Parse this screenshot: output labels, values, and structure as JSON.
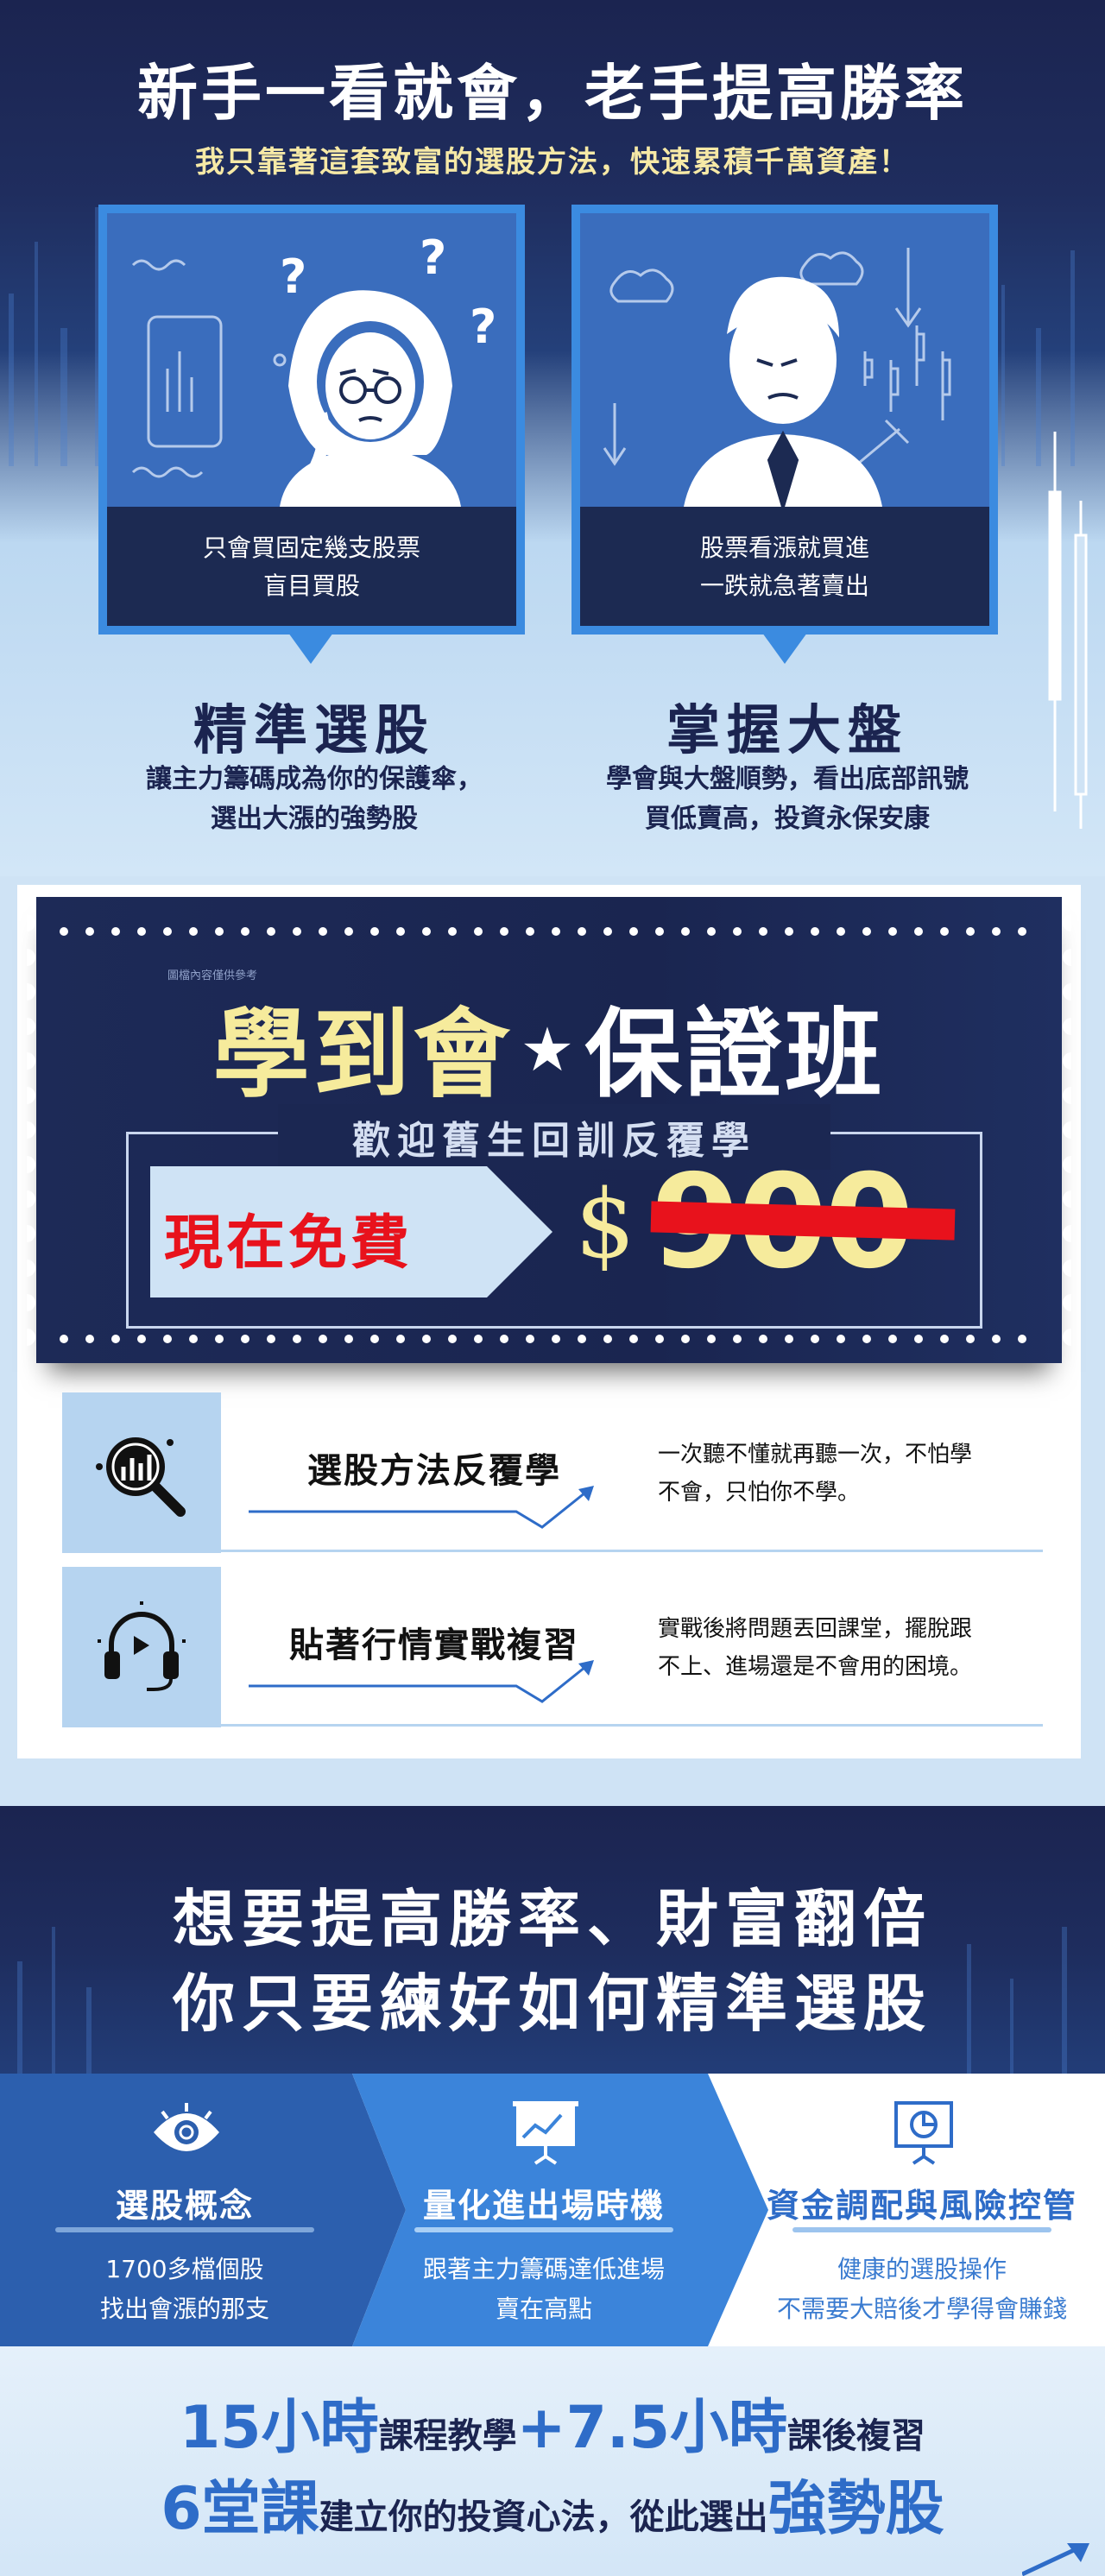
{
  "hero": {
    "title": "新手一看就會，老手提高勝率",
    "subtitle": "我只靠著這套致富的選股方法，快速累積千萬資產！",
    "cards": [
      {
        "caption_line1": "只會買固定幾支股票",
        "caption_line2": "盲目買股",
        "icon": "confused-woman-icon"
      },
      {
        "caption_line1": "股票看漲就買進",
        "caption_line2": "一跌就急著賣出",
        "icon": "stressed-man-icon"
      }
    ],
    "features": [
      {
        "title": "精準選股",
        "desc_line1": "讓主力籌碼成為你的保護傘，",
        "desc_line2": "選出大漲的強勢股"
      },
      {
        "title": "掌握大盤",
        "desc_line1": "學會與大盤順勢，看出底部訊號",
        "desc_line2": "買低賣高，投資永保安康"
      }
    ]
  },
  "ticket": {
    "small_text": "圖檔內容僅供參考",
    "title_part1": "學到會",
    "star": "★",
    "title_part2": "保證班",
    "subtitle": "歡迎舊生回訓反覆學",
    "free_label": "現在免費",
    "price_symbol": "$",
    "price_value": "900"
  },
  "benefits": [
    {
      "title": "選股方法反覆學",
      "desc_line1": "一次聽不懂就再聽一次，不怕學",
      "desc_line2": "不會，只怕你不學。",
      "icon": "chart-magnifier-icon"
    },
    {
      "title": "貼著行情實戰複習",
      "desc_line1": "實戰後將問題丟回課堂，擺脫跟",
      "desc_line2": "不上、進場還是不會用的困境。",
      "icon": "headset-play-icon"
    }
  ],
  "section3": {
    "line1": "想要提高勝率、財富翻倍",
    "line2": "你只要練好如何精準選股"
  },
  "steps": [
    {
      "title": "選股概念",
      "desc_line1": "1700多檔個股",
      "desc_line2": "找出會漲的那支",
      "icon": "eye-icon"
    },
    {
      "title": "量化進出場時機",
      "desc_line1": "跟著主力籌碼達低進場",
      "desc_line2": "賣在高點",
      "icon": "presentation-chart-icon"
    },
    {
      "title": "資金調配與風險控管",
      "desc_line1": "健康的選股操作",
      "desc_line2": "不需要大賠後才學得會賺錢",
      "icon": "pie-board-icon"
    }
  ],
  "summary": {
    "l1_big1": "15小時",
    "l1_text1": "課程教學",
    "l1_plus": "+",
    "l1_big2": "7.5小時",
    "l1_text2": "課後複習",
    "l2_big1": "6堂課",
    "l2_text1": "建立你的投資心法，從此選出",
    "l2_big2": "強勢股"
  },
  "colors": {
    "navy": "#1b2450",
    "accent_blue": "#2e6cc8",
    "cream": "#f6eb9c",
    "red": "#e8121c"
  }
}
